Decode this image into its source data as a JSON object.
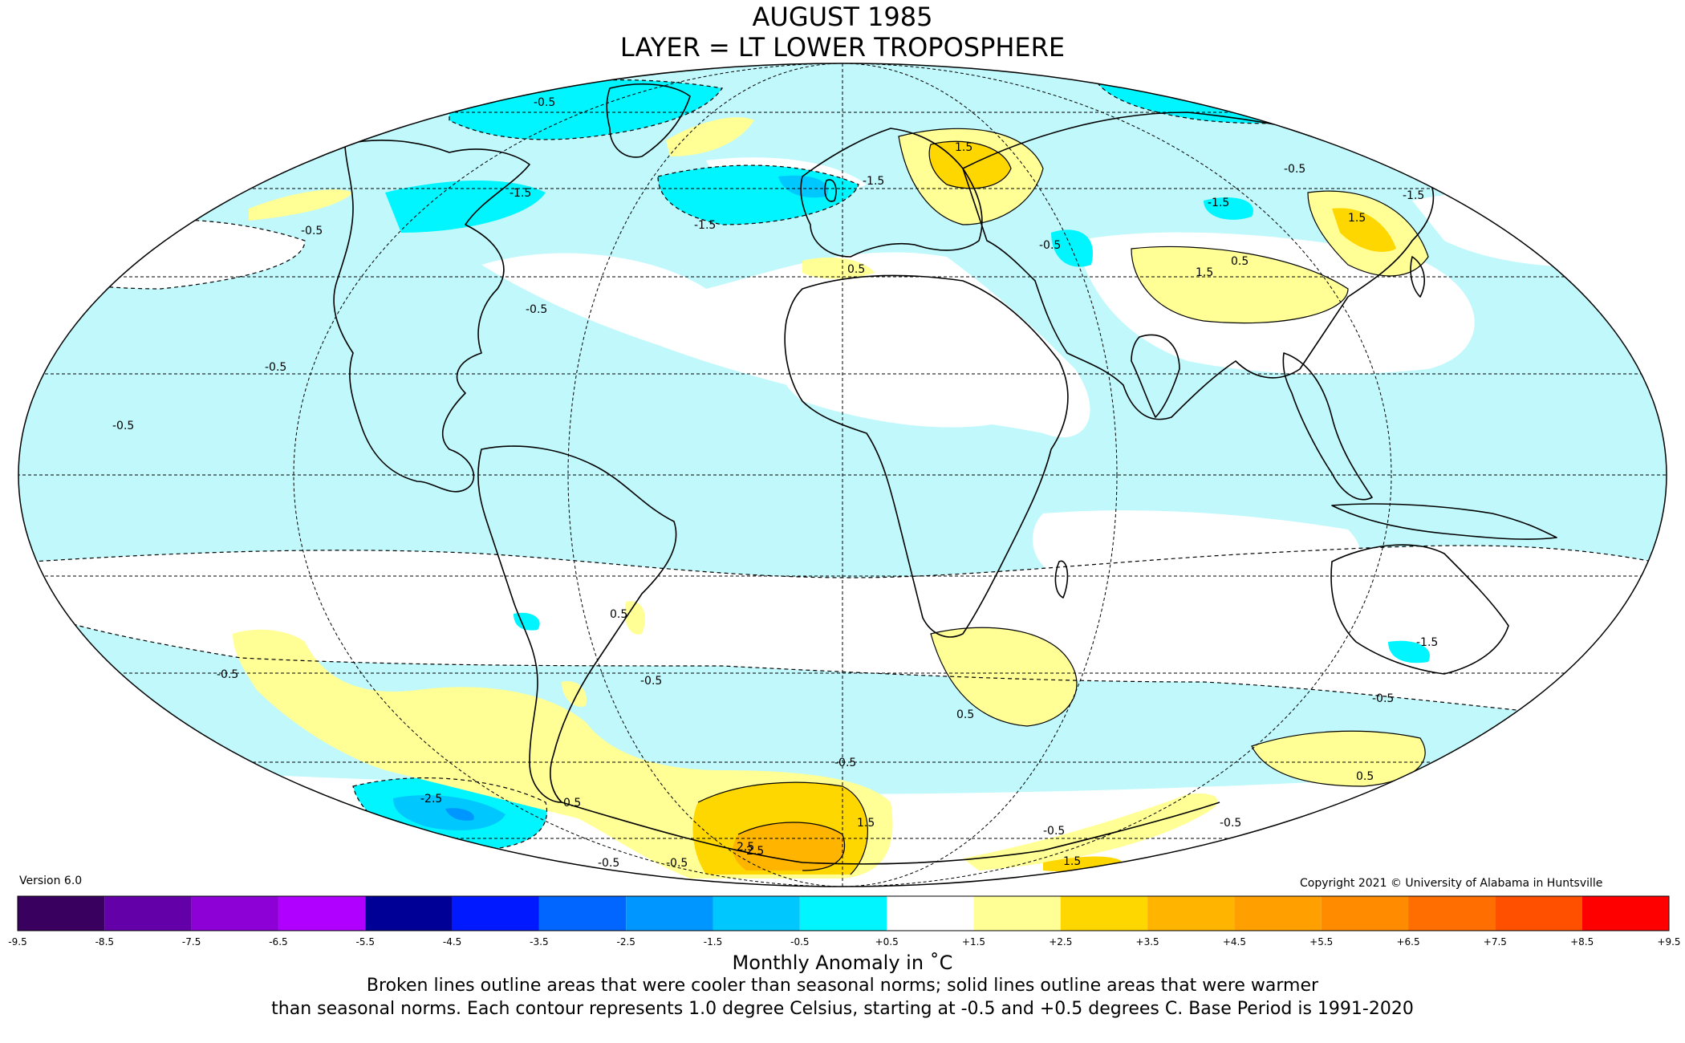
{
  "header": {
    "title_line1": "AUGUST 1985",
    "title_line2": "LAYER = LT LOWER TROPOSPHERE"
  },
  "version_label": "Version 6.0",
  "copyright": "Copyright 2021 © University of Alabama in Huntsville",
  "colorbar": {
    "ticks": [
      "-9.5",
      "-8.5",
      "-7.5",
      "-6.5",
      "-5.5",
      "-4.5",
      "-3.5",
      "-2.5",
      "-1.5",
      "-0.5",
      "+0.5",
      "+1.5",
      "+2.5",
      "+3.5",
      "+4.5",
      "+5.5",
      "+6.5",
      "+7.5",
      "+8.5",
      "+9.5"
    ],
    "colors": [
      "#3a005f",
      "#6300a8",
      "#8d00d6",
      "#b000ff",
      "#000096",
      "#0019ff",
      "#0066ff",
      "#0096ff",
      "#00c8ff",
      "#00f5ff",
      "#c0f8fb",
      "#ffffff",
      "#ffff96",
      "#ffd700",
      "#ffb400",
      "#ffa000",
      "#ff8c00",
      "#ff6e00",
      "#ff5000",
      "#ff0000",
      "#e60000",
      "#c00000"
    ]
  },
  "legend": {
    "units_label": "Monthly Anomaly in ˚C",
    "note_line1": "Broken lines outline areas that were cooler than seasonal norms; solid lines outline areas that were warmer",
    "note_line2": "than seasonal norms. Each contour represents 1.0 degree Celsius, starting at -0.5 and +0.5 degrees C. Base Period is 1991-2020"
  },
  "map": {
    "projection": "mollweide",
    "colors": {
      "cool_05": "#c0f8fb",
      "cool_15": "#00f5ff",
      "cool_25": "#00c8ff",
      "cool_35": "#0096ff",
      "warm_05": "#ffff96",
      "warm_15": "#ffd700",
      "warm_25": "#ffb400",
      "neutral": "#ffffff"
    },
    "contour_labels": [
      "-0.5",
      "-0.5",
      "-0.5",
      "-0.5",
      "-0.5",
      "-0.5",
      "-0.5",
      "-0.5",
      "-0.5",
      "-0.5",
      "-0.5",
      "-0.5",
      "-0.5",
      "-1.5",
      "-1.5",
      "-1.5",
      "-1.5",
      "-1.5",
      "-1.5",
      "-2.5",
      "-2.5",
      "1.5",
      "1.5",
      "1.5",
      "1.5",
      "1.5",
      "2.5",
      "0.5",
      "0.5",
      "0.5",
      "0.5",
      "0.5",
      "0.5",
      "-0.5",
      "-0.5"
    ]
  }
}
